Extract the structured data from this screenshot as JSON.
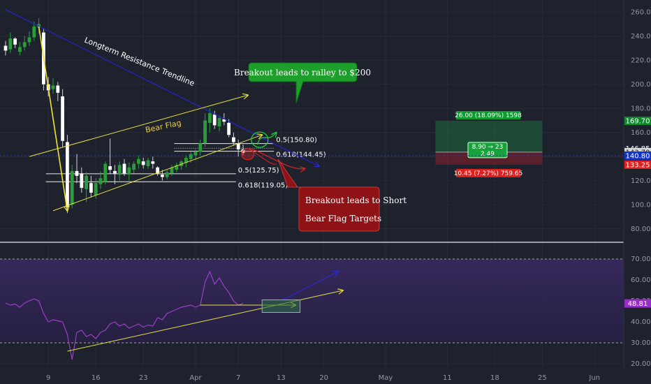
{
  "chart_data": [
    {
      "type": "candlestick",
      "panel": "price",
      "ylim": [
        70,
        270
      ],
      "y_ticks": [
        80,
        100,
        120,
        140,
        160,
        180,
        200,
        220,
        240,
        260
      ],
      "x_ticks": [
        "9",
        "16",
        "23",
        "Apr",
        "7",
        "13",
        "20",
        "May",
        "11",
        "18",
        "25",
        "Jun"
      ],
      "ohlc": [
        [
          232,
          236,
          224,
          228
        ],
        [
          229,
          243,
          226,
          238
        ],
        [
          238,
          239,
          230,
          233
        ],
        [
          227,
          235,
          224,
          231
        ],
        [
          231,
          240,
          228,
          235
        ],
        [
          235,
          244,
          232,
          239
        ],
        [
          239,
          252,
          236,
          248
        ],
        [
          247,
          255,
          242,
          250
        ],
        [
          243,
          246,
          195,
          200
        ],
        [
          200,
          206,
          190,
          195
        ],
        [
          196,
          205,
          192,
          199
        ],
        [
          199,
          202,
          186,
          193
        ],
        [
          190,
          196,
          148,
          153
        ],
        [
          152,
          158,
          93,
          98
        ],
        [
          100,
          133,
          97,
          128
        ],
        [
          128,
          142,
          118,
          124
        ],
        [
          126,
          131,
          110,
          114
        ],
        [
          113,
          127,
          102,
          124
        ],
        [
          118,
          124,
          106,
          110
        ],
        [
          108,
          122,
          105,
          118
        ],
        [
          117,
          128,
          113,
          122
        ],
        [
          119,
          136,
          117,
          134
        ],
        [
          132,
          155,
          126,
          129
        ],
        [
          128,
          133,
          117,
          126
        ],
        [
          125,
          136,
          120,
          133
        ],
        [
          134,
          138,
          124,
          126
        ],
        [
          125,
          135,
          120,
          131
        ],
        [
          129,
          136,
          126,
          134
        ],
        [
          134,
          141,
          130,
          138
        ],
        [
          136,
          139,
          130,
          133
        ],
        [
          132,
          139,
          130,
          137
        ],
        [
          136,
          140,
          130,
          134
        ],
        [
          131,
          132,
          124,
          126
        ],
        [
          125,
          129,
          120,
          123
        ],
        [
          123,
          129,
          121,
          127
        ],
        [
          126,
          133,
          124,
          131
        ],
        [
          129,
          135,
          127,
          133
        ],
        [
          132,
          137,
          129,
          136
        ],
        [
          135,
          141,
          131,
          139
        ],
        [
          138,
          144,
          135,
          142
        ],
        [
          141,
          146,
          137,
          144
        ],
        [
          144,
          154,
          141,
          151
        ],
        [
          151,
          176,
          148,
          170
        ],
        [
          168,
          180,
          160,
          176
        ],
        [
          175,
          178,
          163,
          166
        ],
        [
          165,
          174,
          161,
          172
        ],
        [
          171,
          176,
          166,
          169
        ],
        [
          168,
          171,
          156,
          158
        ],
        [
          156,
          160,
          149,
          152
        ],
        [
          151,
          154,
          140,
          146
        ],
        [
          146,
          150,
          141,
          143
        ]
      ],
      "trendlines": [
        {
          "name": "longterm-resistance",
          "points": [
            [
              0,
              262
            ],
            [
              66,
              132
            ]
          ]
        },
        {
          "name": "bear-flag-upper",
          "points": [
            [
              5,
              140
            ],
            [
              51,
              191
            ]
          ]
        },
        {
          "name": "bear-flag-lower",
          "points": [
            [
              10,
              95
            ],
            [
              54,
              158
            ]
          ]
        },
        {
          "name": "drop-arrow",
          "points": [
            [
              7,
              248
            ],
            [
              13,
              95
            ]
          ]
        }
      ],
      "fib_levels": [
        {
          "label": "0.5(150.80)",
          "value": 150.8
        },
        {
          "label": "0.618(144.45)",
          "value": 144.45
        },
        {
          "label": "0.5(125.75)",
          "value": 125.75
        },
        {
          "label": "0.618(119.05)",
          "value": 119.05
        }
      ],
      "annotations": [
        {
          "text": "Longterm Resistance Trendline",
          "color": "#ffffff"
        },
        {
          "text": "Bear Flag",
          "color": "#f0d13a"
        }
      ],
      "callouts": [
        {
          "lines": [
            "Breakout leads to ralley to $200"
          ],
          "color": "#1e9e2a"
        },
        {
          "lines": [
            "Breakout leads to Short",
            "Bear Flag Targets"
          ],
          "color": "#8e1216"
        }
      ],
      "position": {
        "target": 169.7,
        "entry": 143.7,
        "stop": 133.25,
        "profit_label": "26.00 (18.09%) 1598",
        "loss_label": "10.45 (7.27%) 759.65",
        "ratio_label": [
          "8.90 → 23",
          "2.49"
        ]
      },
      "price_badges": [
        {
          "value": "169.70",
          "bg": "#0e8a2c",
          "fg": "#ffffff"
        },
        {
          "value": "146.85",
          "bg": "#1e222d",
          "fg": "#ffffff"
        },
        {
          "value": "143.70",
          "bg": "#d8d8d8",
          "fg": "#131722"
        },
        {
          "value": "140.80",
          "bg": "#1434c8",
          "fg": "#ffffff"
        },
        {
          "value": "133.25",
          "bg": "#e0201f",
          "fg": "#ffffff"
        }
      ]
    },
    {
      "type": "line",
      "panel": "rsi",
      "ylim": [
        17,
        77
      ],
      "y_ticks": [
        20,
        30,
        40,
        50,
        60,
        70
      ],
      "bands": [
        30,
        70
      ],
      "values": [
        49,
        48,
        48.5,
        47,
        49,
        50,
        51,
        50,
        44,
        40,
        41,
        40.5,
        40,
        34,
        22,
        35,
        36,
        33,
        34,
        32,
        35,
        36,
        39,
        40,
        38,
        39,
        37,
        38,
        39,
        37.5,
        38.5,
        38,
        42,
        41,
        44,
        45,
        46,
        47,
        47.5,
        48,
        47,
        48,
        59,
        64,
        58,
        61,
        57,
        54,
        50,
        48,
        48.81
      ],
      "current_label": "48.81",
      "trendlines": [
        {
          "name": "rsi-support",
          "points": [
            [
              13,
              26
            ],
            [
              71,
              55
            ]
          ]
        },
        {
          "name": "rsi-resistance-arrow",
          "points": [
            [
              41,
              48
            ],
            [
              61,
              48
            ]
          ]
        },
        {
          "name": "rsi-blue-arrow",
          "points": [
            [
              58,
              50
            ],
            [
              70,
              64
            ]
          ]
        }
      ]
    }
  ]
}
